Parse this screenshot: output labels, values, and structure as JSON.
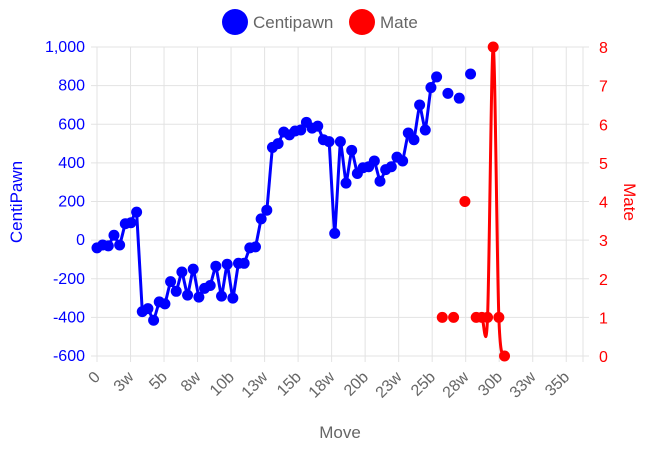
{
  "chart_data": {
    "type": "line",
    "xlabel": "Move",
    "x_tick_labels": [
      "0",
      "3w",
      "5b",
      "8w",
      "10b",
      "13w",
      "15b",
      "18w",
      "20b",
      "23w",
      "25b",
      "28w",
      "30b",
      "33w",
      "35b"
    ],
    "y_left": {
      "label": "CentiPawn",
      "range": [
        -600,
        1000
      ],
      "step": 200,
      "tick_labels": [
        "-600",
        "-400",
        "-200",
        "0",
        "200",
        "400",
        "600",
        "800",
        "1,000"
      ],
      "color": "#0000ff"
    },
    "y_right": {
      "label": "Mate",
      "range": [
        0,
        8
      ],
      "step": 1,
      "tick_labels": [
        "0",
        "1",
        "2",
        "3",
        "4",
        "5",
        "6",
        "7",
        "8"
      ],
      "color": "#ff0000"
    },
    "legend": {
      "position": "top",
      "entries": [
        "Centipawn",
        "Mate"
      ]
    },
    "grid": true,
    "series": [
      {
        "name": "Centipawn",
        "axis": "left",
        "color": "#0000ff",
        "start_index": 0,
        "values": [
          -40,
          -25,
          -30,
          25,
          -25,
          85,
          90,
          145,
          -370,
          -355,
          -415,
          -320,
          -330,
          -215,
          -265,
          -165,
          -285,
          -150,
          -295,
          -250,
          -235,
          -135,
          -290,
          -125,
          -300,
          -120,
          -120,
          -40,
          -35,
          110,
          155,
          480,
          500,
          560,
          545,
          565,
          570,
          610,
          580,
          590,
          520,
          510,
          35,
          510,
          295,
          465,
          345,
          375,
          380,
          410,
          305,
          365,
          380,
          430,
          410,
          555,
          520,
          700,
          570,
          790,
          845,
          null,
          760,
          null,
          735,
          null,
          860
        ]
      },
      {
        "name": "Mate",
        "axis": "right",
        "color": "#ff0000",
        "start_index": 61,
        "values": [
          1,
          null,
          1,
          null,
          4,
          null,
          1,
          1,
          1,
          8,
          1,
          0
        ]
      }
    ]
  }
}
